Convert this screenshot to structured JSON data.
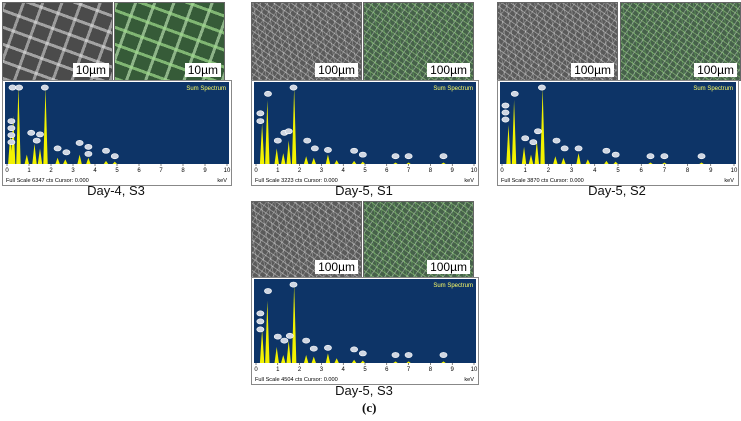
{
  "accent_colors": {
    "plot_bg": "#0d3467",
    "peak": "#f2f200",
    "axis_text": "#000000"
  },
  "figure_label": "(c)",
  "panels": [
    {
      "caption": "Day-4, S3",
      "scale_left": "10µm",
      "scale_right": "10µm",
      "coarse": true,
      "spectrum_title": "Sum Spectrum",
      "footer": "Full Scale 6347 cts Cursor: 0.000",
      "unit": "keV",
      "ticks": [
        "0",
        "1",
        "2",
        "3",
        "4",
        "5",
        "6",
        "7",
        "8",
        "9",
        "10"
      ],
      "peaks": [
        [
          0.15,
          0.38
        ],
        [
          0.28,
          0.62
        ],
        [
          0.52,
          1.0
        ],
        [
          0.9,
          0.12
        ],
        [
          1.25,
          0.26
        ],
        [
          1.5,
          0.2
        ],
        [
          1.75,
          0.98
        ],
        [
          2.3,
          0.08
        ],
        [
          2.65,
          0.06
        ],
        [
          3.3,
          0.12
        ],
        [
          3.7,
          0.08
        ],
        [
          4.5,
          0.04
        ],
        [
          4.9,
          0.03
        ]
      ],
      "markers": [
        [
          0.25,
          0.98
        ],
        [
          0.55,
          0.98
        ],
        [
          1.72,
          0.98
        ],
        [
          0.2,
          0.55
        ],
        [
          0.2,
          0.46
        ],
        [
          0.2,
          0.37
        ],
        [
          0.2,
          0.28
        ],
        [
          1.1,
          0.4
        ],
        [
          1.5,
          0.38
        ],
        [
          1.35,
          0.3
        ],
        [
          2.3,
          0.2
        ],
        [
          2.7,
          0.15
        ],
        [
          3.3,
          0.27
        ],
        [
          3.7,
          0.22
        ],
        [
          3.7,
          0.13
        ],
        [
          4.5,
          0.17
        ],
        [
          4.9,
          0.1
        ]
      ]
    },
    {
      "caption": "Day-5, S1",
      "scale_left": "100µm",
      "scale_right": "100µm",
      "coarse": false,
      "spectrum_title": "Sum Spectrum",
      "footer": "Full Scale 3223 cts Cursor: 0.000",
      "unit": "keV",
      "ticks": [
        "0",
        "1",
        "2",
        "3",
        "4",
        "5",
        "6",
        "7",
        "8",
        "9",
        "10"
      ],
      "peaks": [
        [
          0.28,
          0.52
        ],
        [
          0.52,
          0.82
        ],
        [
          0.95,
          0.2
        ],
        [
          1.25,
          0.14
        ],
        [
          1.5,
          0.3
        ],
        [
          1.75,
          0.98
        ],
        [
          2.3,
          0.1
        ],
        [
          2.65,
          0.08
        ],
        [
          3.3,
          0.12
        ],
        [
          3.7,
          0.05
        ],
        [
          4.5,
          0.04
        ],
        [
          4.9,
          0.03
        ],
        [
          6.4,
          0.02
        ],
        [
          7.0,
          0.02
        ],
        [
          8.6,
          0.02
        ]
      ],
      "markers": [
        [
          0.55,
          0.9
        ],
        [
          1.72,
          0.98
        ],
        [
          0.2,
          0.65
        ],
        [
          0.2,
          0.55
        ],
        [
          1.0,
          0.3
        ],
        [
          1.3,
          0.4
        ],
        [
          1.5,
          0.42
        ],
        [
          2.35,
          0.3
        ],
        [
          2.7,
          0.2
        ],
        [
          3.3,
          0.18
        ],
        [
          4.5,
          0.17
        ],
        [
          4.9,
          0.12
        ],
        [
          6.4,
          0.1
        ],
        [
          7.0,
          0.1
        ],
        [
          8.6,
          0.1
        ]
      ]
    },
    {
      "caption": "Day-5, S2",
      "scale_left": "100µm",
      "scale_right": "100µm",
      "coarse": false,
      "spectrum_title": "Sum Spectrum",
      "footer": "Full Scale 3870 cts Cursor: 0.000",
      "unit": "keV",
      "ticks": [
        "0",
        "1",
        "2",
        "3",
        "4",
        "5",
        "6",
        "7",
        "8",
        "9",
        "10"
      ],
      "peaks": [
        [
          0.28,
          0.5
        ],
        [
          0.52,
          0.82
        ],
        [
          0.95,
          0.22
        ],
        [
          1.25,
          0.12
        ],
        [
          1.5,
          0.3
        ],
        [
          1.75,
          0.98
        ],
        [
          2.3,
          0.1
        ],
        [
          2.65,
          0.08
        ],
        [
          3.3,
          0.14
        ],
        [
          3.7,
          0.06
        ],
        [
          4.5,
          0.04
        ],
        [
          4.9,
          0.03
        ],
        [
          6.4,
          0.02
        ],
        [
          7.0,
          0.02
        ],
        [
          8.6,
          0.02
        ]
      ],
      "markers": [
        [
          0.55,
          0.9
        ],
        [
          1.72,
          0.98
        ],
        [
          0.15,
          0.75
        ],
        [
          0.15,
          0.66
        ],
        [
          0.15,
          0.57
        ],
        [
          1.0,
          0.33
        ],
        [
          1.35,
          0.28
        ],
        [
          1.55,
          0.42
        ],
        [
          2.35,
          0.3
        ],
        [
          2.7,
          0.2
        ],
        [
          3.3,
          0.2
        ],
        [
          4.5,
          0.17
        ],
        [
          4.9,
          0.12
        ],
        [
          6.4,
          0.1
        ],
        [
          7.0,
          0.1
        ],
        [
          8.6,
          0.1
        ]
      ]
    },
    {
      "caption": "Day-5, S3",
      "scale_left": "100µm",
      "scale_right": "100µm",
      "coarse": false,
      "spectrum_title": "Sum Spectrum",
      "footer": "Full Scale 4504 cts Cursor: 0.000",
      "unit": "keV",
      "ticks": [
        "0",
        "1",
        "2",
        "3",
        "4",
        "5",
        "6",
        "7",
        "8",
        "9",
        "10"
      ],
      "peaks": [
        [
          0.28,
          0.42
        ],
        [
          0.52,
          0.78
        ],
        [
          0.95,
          0.2
        ],
        [
          1.25,
          0.1
        ],
        [
          1.5,
          0.28
        ],
        [
          1.75,
          0.98
        ],
        [
          2.3,
          0.1
        ],
        [
          2.65,
          0.08
        ],
        [
          3.3,
          0.12
        ],
        [
          3.7,
          0.06
        ],
        [
          4.5,
          0.04
        ],
        [
          4.9,
          0.03
        ],
        [
          6.4,
          0.02
        ],
        [
          7.0,
          0.02
        ],
        [
          8.6,
          0.02
        ]
      ],
      "markers": [
        [
          0.55,
          0.9
        ],
        [
          1.72,
          0.98
        ],
        [
          0.2,
          0.62
        ],
        [
          0.2,
          0.52
        ],
        [
          0.2,
          0.42
        ],
        [
          1.0,
          0.33
        ],
        [
          1.3,
          0.28
        ],
        [
          1.55,
          0.34
        ],
        [
          2.3,
          0.28
        ],
        [
          2.65,
          0.18
        ],
        [
          3.3,
          0.19
        ],
        [
          4.5,
          0.17
        ],
        [
          4.9,
          0.12
        ],
        [
          6.4,
          0.1
        ],
        [
          7.0,
          0.1
        ],
        [
          8.6,
          0.1
        ]
      ]
    }
  ]
}
